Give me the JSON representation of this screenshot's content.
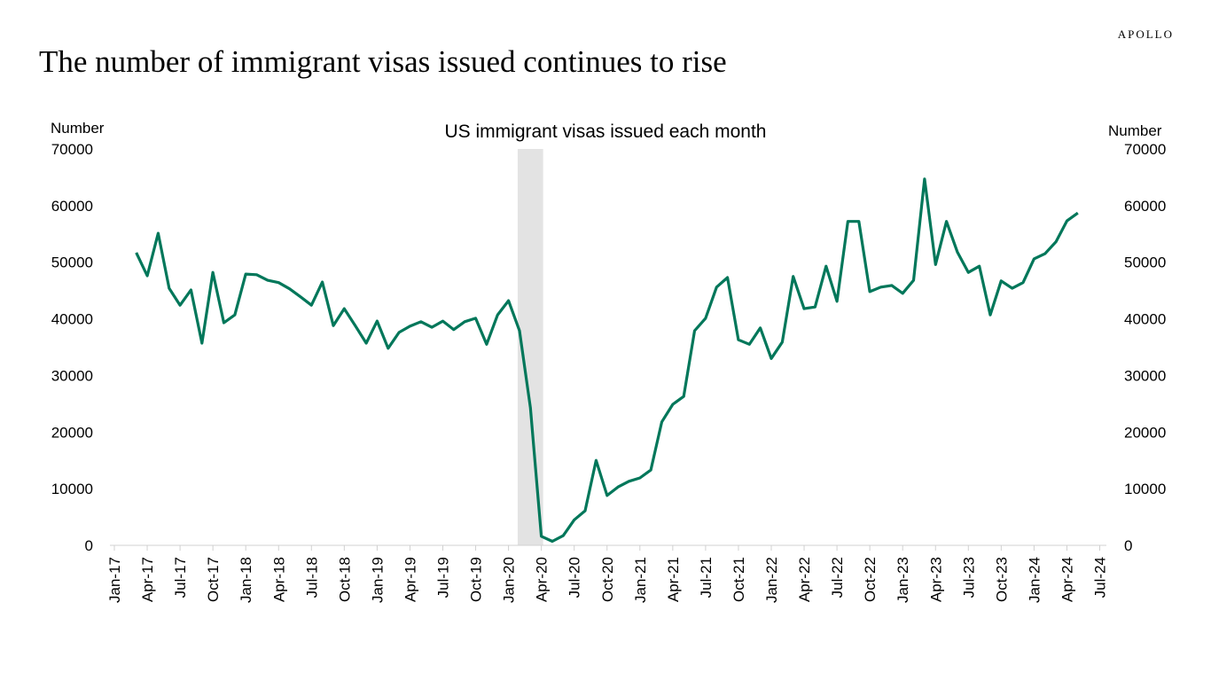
{
  "brand": "APOLLO",
  "title": "The number of immigrant visas issued continues to rise",
  "chart_data": {
    "type": "line",
    "title": "US immigrant visas issued each month",
    "ylabel_left": "Number",
    "ylabel_right": "Number",
    "ylim": [
      0,
      70000
    ],
    "yticks": [
      0,
      10000,
      20000,
      30000,
      40000,
      50000,
      60000,
      70000
    ],
    "xtick_labels": [
      "Jan-17",
      "Apr-17",
      "Jul-17",
      "Oct-17",
      "Jan-18",
      "Apr-18",
      "Jul-18",
      "Oct-18",
      "Jan-19",
      "Apr-19",
      "Jul-19",
      "Oct-19",
      "Jan-20",
      "Apr-20",
      "Jul-20",
      "Oct-20",
      "Jan-21",
      "Apr-21",
      "Jul-21",
      "Oct-21",
      "Jan-22",
      "Apr-22",
      "Jul-22",
      "Oct-22",
      "Jan-23",
      "Apr-23",
      "Jul-23",
      "Oct-23",
      "Jan-24",
      "Apr-24",
      "Jul-24"
    ],
    "xlim": [
      "2017-01",
      "2024-07"
    ],
    "start": "2017-03",
    "frequency": "monthly",
    "shaded_region": [
      "2020-02",
      "2020-04"
    ],
    "line_color": "#00775A",
    "shade_color": "#E3E3E3",
    "grid": false,
    "values": [
      51700,
      47600,
      55100,
      45400,
      42400,
      45100,
      35700,
      48200,
      39300,
      40700,
      47900,
      47800,
      46800,
      46400,
      45300,
      43900,
      42400,
      46500,
      38800,
      41800,
      38800,
      35700,
      39600,
      34800,
      37600,
      38700,
      39500,
      38500,
      39600,
      38100,
      39500,
      40100,
      35500,
      40700,
      43200,
      37900,
      24300,
      1600,
      700,
      1700,
      4500,
      6100,
      15000,
      8800,
      10300,
      11300,
      11900,
      13300,
      21800,
      24900,
      26300,
      37900,
      40100,
      45600,
      47300,
      36300,
      35500,
      38400,
      33000,
      35900,
      47500,
      41800,
      42100,
      49300,
      43100,
      57200,
      57200,
      44800,
      45600,
      45900,
      44500,
      46800,
      64700,
      49600,
      57200,
      51800,
      48200,
      49300,
      40700,
      46700,
      45400,
      46400,
      50600,
      51500,
      53600,
      57300,
      58700
    ]
  }
}
